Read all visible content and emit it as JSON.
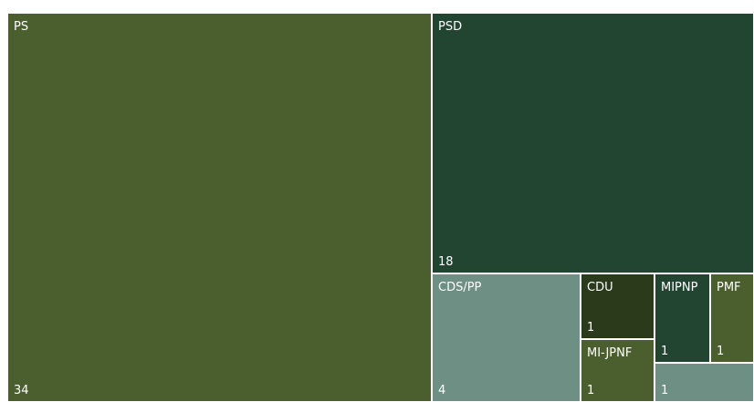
{
  "chart_data": {
    "type": "treemap",
    "title": "",
    "items": [
      {
        "label": "PS",
        "value": 34,
        "color": "#4b5e2e"
      },
      {
        "label": "PSD",
        "value": 18,
        "color": "#224531"
      },
      {
        "label": "CDS/PP",
        "value": 4,
        "color": "#6e8f84"
      },
      {
        "label": "CDU",
        "value": 1,
        "color": "#2c3a1c"
      },
      {
        "label": "MI-JPNF",
        "value": 1,
        "color": "#4b5e2e"
      },
      {
        "label": "MIPNP",
        "value": 1,
        "color": "#224531"
      },
      {
        "label": "PMF",
        "value": 1,
        "color": "#4b5e2e"
      },
      {
        "label": "",
        "value": 1,
        "color": "#6e8f84"
      }
    ]
  }
}
